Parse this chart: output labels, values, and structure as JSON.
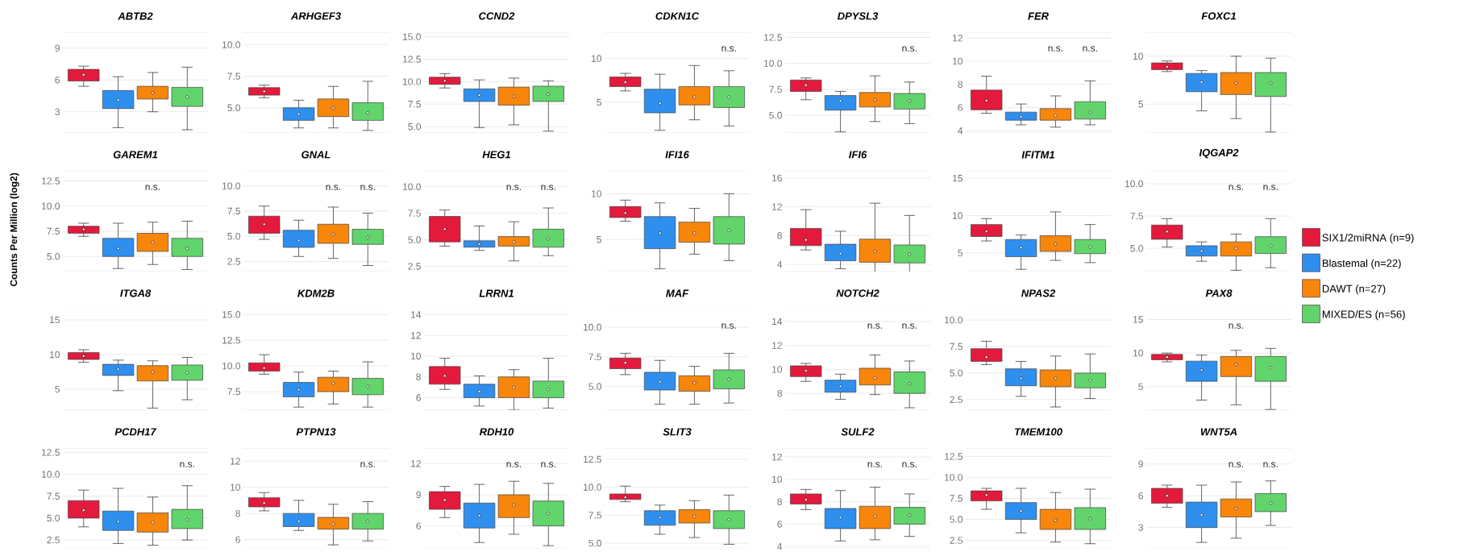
{
  "chart_data": [
    {
      "type": "box",
      "title": "ABTB2",
      "legend": "right",
      "categories": [
        null
      ],
      "ylim": [
        1,
        10.5
      ],
      "yticks": [
        3,
        6,
        9
      ],
      "grid": "y",
      "series": [
        {
          "name": "SIX1/2miRNA (n=9)",
          "color": "#e31a3c",
          "boxes": [
            {
              "low": 5.4,
              "q1": 5.9,
              "median": 6.5,
              "q3": 7.0,
              "high": 7.3
            }
          ]
        },
        {
          "name": "Blastemal (n=22)",
          "color": "#2f8fef",
          "boxes": [
            {
              "low": 1.5,
              "q1": 3.3,
              "median": 4.1,
              "q3": 5.0,
              "high": 6.3
            }
          ]
        },
        {
          "name": "DAWT (n=27)",
          "color": "#f7860b",
          "boxes": [
            {
              "low": 3.0,
              "q1": 4.2,
              "median": 4.8,
              "q3": 5.4,
              "high": 6.7
            }
          ]
        },
        {
          "name": "MIXED/ES (n=56)",
          "color": "#61d46b",
          "boxes": [
            {
              "low": 1.3,
              "q1": 3.5,
              "median": 4.4,
              "q3": 5.3,
              "high": 7.2
            }
          ]
        }
      ]
    },
    {
      "type": "box",
      "title": "ARHGEF3",
      "categories": [
        null
      ],
      "ylim": [
        3,
        11
      ],
      "yticks": [
        {
          "value": 5,
          "label": "5.0"
        },
        7.5,
        {
          "value": 10,
          "label": "10.0"
        }
      ],
      "grid": "y",
      "series": [
        {
          "color": "#e31a3c",
          "boxes": [
            {
              "low": 5.8,
              "q1": 6.0,
              "median": 6.3,
              "q3": 6.6,
              "high": 6.8
            }
          ]
        },
        {
          "color": "#2f8fef",
          "boxes": [
            {
              "low": 3.4,
              "q1": 4.0,
              "median": 4.5,
              "q3": 5.0,
              "high": 5.6
            }
          ]
        },
        {
          "color": "#f7860b",
          "boxes": [
            {
              "low": 3.4,
              "q1": 4.3,
              "median": 5.0,
              "q3": 5.7,
              "high": 6.7
            }
          ]
        },
        {
          "color": "#61d46b",
          "boxes": [
            {
              "low": 3.2,
              "q1": 4.0,
              "median": 4.6,
              "q3": 5.4,
              "high": 7.1
            }
          ]
        }
      ]
    },
    {
      "type": "box",
      "title": "CCND2",
      "categories": [
        null
      ],
      "ylim": [
        4.3,
        15.5
      ],
      "yticks": [
        {
          "value": 5,
          "label": "5.0"
        },
        7.5,
        {
          "value": 10,
          "label": "10.0"
        },
        12.5,
        {
          "value": 15,
          "label": "15.0"
        }
      ],
      "grid": "y",
      "series": [
        {
          "color": "#e31a3c",
          "boxes": [
            {
              "low": 9.3,
              "q1": 9.7,
              "median": 10.1,
              "q3": 10.5,
              "high": 10.9
            }
          ]
        },
        {
          "color": "#2f8fef",
          "boxes": [
            {
              "low": 4.9,
              "q1": 7.8,
              "median": 8.5,
              "q3": 9.2,
              "high": 10.2
            }
          ]
        },
        {
          "color": "#f7860b",
          "boxes": [
            {
              "low": 5.2,
              "q1": 7.4,
              "median": 8.4,
              "q3": 9.4,
              "high": 10.4
            }
          ]
        },
        {
          "color": "#61d46b",
          "boxes": [
            {
              "low": 4.5,
              "q1": 7.8,
              "median": 8.6,
              "q3": 9.5,
              "high": 10.1
            }
          ]
        }
      ]
    },
    {
      "type": "box",
      "title": "CDKN1C",
      "categories": [
        null
      ],
      "ylim": [
        1.5,
        13
      ],
      "yticks": [
        5,
        10
      ],
      "grid": "y",
      "series": [
        {
          "color": "#e31a3c",
          "boxes": [
            {
              "low": 6.3,
              "q1": 6.8,
              "median": 7.3,
              "q3": 7.9,
              "high": 8.3
            }
          ]
        },
        {
          "color": "#2f8fef",
          "boxes": [
            {
              "low": 1.8,
              "q1": 3.8,
              "median": 4.9,
              "q3": 6.5,
              "high": 8.2
            }
          ]
        },
        {
          "color": "#f7860b",
          "boxes": [
            {
              "low": 3.0,
              "q1": 4.7,
              "median": 5.6,
              "q3": 6.8,
              "high": 9.2
            }
          ]
        },
        {
          "color": "#61d46b",
          "value_labels": [
            "n.s."
          ],
          "boxes": [
            {
              "low": 2.3,
              "q1": 4.4,
              "median": 5.6,
              "q3": 6.8,
              "high": 8.6
            }
          ]
        }
      ]
    },
    {
      "type": "box",
      "title": "DPYSL3",
      "categories": [
        null
      ],
      "ylim": [
        3.3,
        13
      ],
      "yticks": [
        {
          "value": 5,
          "label": "5.0"
        },
        7.5,
        {
          "value": 10,
          "label": "10.0"
        },
        12.5
      ],
      "grid": "y",
      "series": [
        {
          "color": "#e31a3c",
          "boxes": [
            {
              "low": 6.5,
              "q1": 7.3,
              "median": 7.9,
              "q3": 8.4,
              "high": 8.6
            }
          ]
        },
        {
          "color": "#2f8fef",
          "boxes": [
            {
              "low": 3.4,
              "q1": 5.5,
              "median": 6.4,
              "q3": 6.9,
              "high": 7.3
            }
          ]
        },
        {
          "color": "#f7860b",
          "boxes": [
            {
              "low": 4.4,
              "q1": 5.8,
              "median": 6.5,
              "q3": 7.2,
              "high": 8.8
            }
          ]
        },
        {
          "color": "#61d46b",
          "value_labels": [
            "n.s."
          ],
          "boxes": [
            {
              "low": 4.2,
              "q1": 5.6,
              "median": 6.4,
              "q3": 7.1,
              "high": 8.2
            }
          ]
        }
      ]
    },
    {
      "type": "box",
      "title": "FER",
      "categories": [
        null
      ],
      "ylim": [
        3.8,
        12.5
      ],
      "yticks": [
        4,
        6,
        8,
        10,
        12
      ],
      "grid": "y",
      "series": [
        {
          "color": "#e31a3c",
          "boxes": [
            {
              "low": 5.5,
              "q1": 5.8,
              "median": 6.6,
              "q3": 7.5,
              "high": 8.7
            }
          ]
        },
        {
          "color": "#2f8fef",
          "boxes": [
            {
              "low": 4.5,
              "q1": 4.9,
              "median": 5.2,
              "q3": 5.6,
              "high": 6.3
            }
          ]
        },
        {
          "color": "#f7860b",
          "value_labels": [
            "n.s."
          ],
          "boxes": [
            {
              "low": 4.3,
              "q1": 4.9,
              "median": 5.3,
              "q3": 5.9,
              "high": 7.0
            }
          ]
        },
        {
          "color": "#61d46b",
          "value_labels": [
            "n.s."
          ],
          "boxes": [
            {
              "low": 4.5,
              "q1": 5.0,
              "median": 5.6,
              "q3": 6.5,
              "high": 8.3
            }
          ]
        }
      ]
    },
    {
      "type": "box",
      "title": "FOXC1",
      "categories": [
        null
      ],
      "ylim": [
        2,
        12.5
      ],
      "yticks": [
        5,
        10
      ],
      "grid": "y",
      "series": [
        {
          "color": "#e31a3c",
          "boxes": [
            {
              "low": 8.4,
              "q1": 8.6,
              "median": 8.9,
              "q3": 9.3,
              "high": 9.5
            }
          ]
        },
        {
          "color": "#2f8fef",
          "boxes": [
            {
              "low": 4.3,
              "q1": 6.3,
              "median": 7.3,
              "q3": 8.2,
              "high": 8.5
            }
          ]
        },
        {
          "color": "#f7860b",
          "boxes": [
            {
              "low": 3.5,
              "q1": 6.0,
              "median": 7.2,
              "q3": 8.3,
              "high": 10.0
            }
          ]
        },
        {
          "color": "#61d46b",
          "boxes": [
            {
              "low": 2.1,
              "q1": 5.8,
              "median": 7.2,
              "q3": 8.3,
              "high": 9.8
            }
          ]
        }
      ]
    },
    {
      "type": "box",
      "title": "GAREM1",
      "ylabel": "Counts Per Million (log2)",
      "categories": [
        null
      ],
      "ylim": [
        3.5,
        13.5
      ],
      "yticks": [
        {
          "value": 5,
          "label": "5.0"
        },
        7.5,
        {
          "value": 10,
          "label": "10.0"
        },
        12.5
      ],
      "grid": "y",
      "series": [
        {
          "color": "#e31a3c",
          "boxes": [
            {
              "low": 7.0,
              "q1": 7.3,
              "median": 7.7,
              "q3": 8.0,
              "high": 8.3
            }
          ]
        },
        {
          "color": "#2f8fef",
          "boxes": [
            {
              "low": 3.8,
              "q1": 5.0,
              "median": 5.8,
              "q3": 6.8,
              "high": 8.3
            }
          ]
        },
        {
          "color": "#f7860b",
          "value_labels": [
            "n.s."
          ],
          "boxes": [
            {
              "low": 4.2,
              "q1": 5.5,
              "median": 6.4,
              "q3": 7.3,
              "high": 8.4
            }
          ]
        },
        {
          "color": "#61d46b",
          "boxes": [
            {
              "low": 3.7,
              "q1": 5.0,
              "median": 5.8,
              "q3": 6.8,
              "high": 8.5
            }
          ]
        }
      ]
    },
    {
      "type": "box",
      "title": "GNAL",
      "categories": [
        null
      ],
      "ylim": [
        1.5,
        11.5
      ],
      "yticks": [
        2.5,
        {
          "value": 5,
          "label": "5.0"
        },
        7.5,
        {
          "value": 10,
          "label": "10.0"
        }
      ],
      "grid": "y",
      "series": [
        {
          "color": "#e31a3c",
          "boxes": [
            {
              "low": 4.7,
              "q1": 5.3,
              "median": 6.2,
              "q3": 7.0,
              "high": 8.0
            }
          ]
        },
        {
          "color": "#2f8fef",
          "boxes": [
            {
              "low": 3.0,
              "q1": 3.9,
              "median": 4.6,
              "q3": 5.6,
              "high": 6.6
            }
          ]
        },
        {
          "color": "#f7860b",
          "value_labels": [
            "n.s."
          ],
          "boxes": [
            {
              "low": 2.8,
              "q1": 4.3,
              "median": 5.2,
              "q3": 6.2,
              "high": 7.9
            }
          ]
        },
        {
          "color": "#61d46b",
          "value_labels": [
            "n.s."
          ],
          "boxes": [
            {
              "low": 2.1,
              "q1": 4.2,
              "median": 4.9,
              "q3": 5.7,
              "high": 7.3
            }
          ]
        }
      ]
    },
    {
      "type": "box",
      "title": "HEG1",
      "categories": [
        null
      ],
      "ylim": [
        2,
        11.5
      ],
      "yticks": [
        2.5,
        {
          "value": 5,
          "label": "5.0"
        },
        7.5,
        {
          "value": 10,
          "label": "10.0"
        }
      ],
      "grid": "y",
      "series": [
        {
          "color": "#e31a3c",
          "boxes": [
            {
              "low": 4.4,
              "q1": 4.8,
              "median": 6.0,
              "q3": 7.2,
              "high": 7.8
            }
          ]
        },
        {
          "color": "#2f8fef",
          "boxes": [
            {
              "low": 4.0,
              "q1": 4.3,
              "median": 4.6,
              "q3": 4.9,
              "high": 6.3
            }
          ]
        },
        {
          "color": "#f7860b",
          "value_labels": [
            "n.s."
          ],
          "boxes": [
            {
              "low": 3.0,
              "q1": 4.4,
              "median": 4.8,
              "q3": 5.3,
              "high": 6.7
            }
          ]
        },
        {
          "color": "#61d46b",
          "value_labels": [
            "n.s."
          ],
          "boxes": [
            {
              "low": 3.5,
              "q1": 4.3,
              "median": 5.1,
              "q3": 6.0,
              "high": 8.0
            }
          ]
        }
      ]
    },
    {
      "type": "box",
      "title": "IFI16",
      "categories": [
        null
      ],
      "ylim": [
        1.5,
        12.5
      ],
      "yticks": [
        5,
        10
      ],
      "grid": "y",
      "series": [
        {
          "color": "#e31a3c",
          "boxes": [
            {
              "low": 7.0,
              "q1": 7.4,
              "median": 7.9,
              "q3": 8.6,
              "high": 9.3
            }
          ]
        },
        {
          "color": "#2f8fef",
          "boxes": [
            {
              "low": 1.8,
              "q1": 4.0,
              "median": 5.7,
              "q3": 7.5,
              "high": 9.0
            }
          ]
        },
        {
          "color": "#f7860b",
          "boxes": [
            {
              "low": 3.4,
              "q1": 4.7,
              "median": 5.7,
              "q3": 6.9,
              "high": 8.4
            }
          ]
        },
        {
          "color": "#61d46b",
          "boxes": [
            {
              "low": 2.7,
              "q1": 4.5,
              "median": 6.0,
              "q3": 7.5,
              "high": 10.0
            }
          ]
        }
      ]
    },
    {
      "type": "box",
      "title": "IFI6",
      "categories": [
        null
      ],
      "ylim": [
        3,
        17
      ],
      "yticks": [
        4,
        8,
        12,
        16
      ],
      "grid": "y",
      "series": [
        {
          "color": "#e31a3c",
          "boxes": [
            {
              "low": 6.0,
              "q1": 6.6,
              "median": 7.4,
              "q3": 9.0,
              "high": 11.6
            }
          ]
        },
        {
          "color": "#2f8fef",
          "boxes": [
            {
              "low": 3.4,
              "q1": 4.5,
              "median": 5.5,
              "q3": 6.8,
              "high": 8.6
            }
          ]
        },
        {
          "color": "#f7860b",
          "boxes": [
            {
              "low": 2.9,
              "q1": 4.3,
              "median": 5.8,
              "q3": 7.5,
              "high": 12.5
            }
          ]
        },
        {
          "color": "#61d46b",
          "boxes": [
            {
              "low": 2.8,
              "q1": 4.2,
              "median": 5.4,
              "q3": 6.7,
              "high": 10.8
            }
          ]
        }
      ]
    },
    {
      "type": "box",
      "title": "IFITM1",
      "categories": [
        null
      ],
      "ylim": [
        2.5,
        16
      ],
      "yticks": [
        5,
        10,
        15
      ],
      "grid": "y",
      "series": [
        {
          "color": "#e31a3c",
          "boxes": [
            {
              "low": 6.6,
              "q1": 7.2,
              "median": 7.9,
              "q3": 8.8,
              "high": 9.6
            }
          ]
        },
        {
          "color": "#2f8fef",
          "boxes": [
            {
              "low": 2.8,
              "q1": 4.5,
              "median": 5.7,
              "q3": 6.8,
              "high": 7.4
            }
          ]
        },
        {
          "color": "#f7860b",
          "boxes": [
            {
              "low": 4.0,
              "q1": 5.2,
              "median": 6.2,
              "q3": 7.3,
              "high": 10.5
            }
          ]
        },
        {
          "color": "#61d46b",
          "boxes": [
            {
              "low": 3.7,
              "q1": 4.9,
              "median": 5.8,
              "q3": 6.8,
              "high": 8.8
            }
          ]
        }
      ]
    },
    {
      "type": "box",
      "title": "IQGAP2",
      "categories": [
        null
      ],
      "ylim": [
        3.2,
        11
      ],
      "yticks": [
        {
          "value": 5,
          "label": "5.0"
        },
        7.5,
        {
          "value": 10,
          "label": "10.0"
        }
      ],
      "grid": "y",
      "series": [
        {
          "color": "#e31a3c",
          "boxes": [
            {
              "low": 5.1,
              "q1": 5.7,
              "median": 6.3,
              "q3": 6.8,
              "high": 7.3
            }
          ]
        },
        {
          "color": "#2f8fef",
          "boxes": [
            {
              "low": 4.0,
              "q1": 4.4,
              "median": 4.8,
              "q3": 5.2,
              "high": 5.5
            }
          ]
        },
        {
          "color": "#f7860b",
          "value_labels": [
            "n.s."
          ],
          "boxes": [
            {
              "low": 3.3,
              "q1": 4.4,
              "median": 5.0,
              "q3": 5.5,
              "high": 6.1
            }
          ]
        },
        {
          "color": "#61d46b",
          "value_labels": [
            "n.s."
          ],
          "boxes": [
            {
              "low": 3.5,
              "q1": 4.6,
              "median": 5.2,
              "q3": 5.9,
              "high": 7.3
            }
          ]
        }
      ]
    },
    {
      "type": "box",
      "title": "ITGA8",
      "categories": [
        null
      ],
      "ylim": [
        2,
        16.5
      ],
      "yticks": [
        5,
        10,
        15
      ],
      "grid": "y",
      "series": [
        {
          "color": "#e31a3c",
          "boxes": [
            {
              "low": 8.9,
              "q1": 9.3,
              "median": 9.8,
              "q3": 10.3,
              "high": 10.7
            }
          ]
        },
        {
          "color": "#2f8fef",
          "boxes": [
            {
              "low": 4.8,
              "q1": 7.0,
              "median": 7.9,
              "q3": 8.6,
              "high": 9.2
            }
          ]
        },
        {
          "color": "#f7860b",
          "boxes": [
            {
              "low": 2.3,
              "q1": 6.2,
              "median": 7.5,
              "q3": 8.4,
              "high": 9.1
            }
          ]
        },
        {
          "color": "#61d46b",
          "boxes": [
            {
              "low": 3.5,
              "q1": 6.3,
              "median": 7.4,
              "q3": 8.5,
              "high": 9.6
            }
          ]
        }
      ]
    },
    {
      "type": "box",
      "title": "KDM2B",
      "categories": [
        null
      ],
      "ylim": [
        5.7,
        15.5
      ],
      "yticks": [
        7.5,
        {
          "value": 10,
          "label": "10.0"
        },
        12.5,
        {
          "value": 15,
          "label": "15.0"
        }
      ],
      "grid": "y",
      "series": [
        {
          "color": "#e31a3c",
          "boxes": [
            {
              "low": 9.2,
              "q1": 9.5,
              "median": 9.8,
              "q3": 10.3,
              "high": 11.1
            }
          ]
        },
        {
          "color": "#2f8fef",
          "boxes": [
            {
              "low": 6.0,
              "q1": 7.0,
              "median": 7.7,
              "q3": 8.4,
              "high": 9.4
            }
          ]
        },
        {
          "color": "#f7860b",
          "boxes": [
            {
              "low": 6.3,
              "q1": 7.5,
              "median": 8.3,
              "q3": 8.9,
              "high": 9.5
            }
          ]
        },
        {
          "color": "#61d46b",
          "boxes": [
            {
              "low": 6.0,
              "q1": 7.2,
              "median": 8.0,
              "q3": 8.8,
              "high": 10.4
            }
          ]
        }
      ]
    },
    {
      "type": "box",
      "title": "LRRN1",
      "categories": [
        null
      ],
      "ylim": [
        4.8,
        14.5
      ],
      "yticks": [
        6,
        8,
        10,
        12,
        14
      ],
      "grid": "y",
      "series": [
        {
          "color": "#e31a3c",
          "boxes": [
            {
              "low": 6.8,
              "q1": 7.3,
              "median": 8.1,
              "q3": 9.0,
              "high": 9.8
            }
          ]
        },
        {
          "color": "#2f8fef",
          "boxes": [
            {
              "low": 5.2,
              "q1": 6.0,
              "median": 6.6,
              "q3": 7.3,
              "high": 8.1
            }
          ]
        },
        {
          "color": "#f7860b",
          "boxes": [
            {
              "low": 4.8,
              "q1": 6.0,
              "median": 7.0,
              "q3": 8.0,
              "high": 8.7
            }
          ]
        },
        {
          "color": "#61d46b",
          "boxes": [
            {
              "low": 5.0,
              "q1": 6.0,
              "median": 6.8,
              "q3": 7.6,
              "high": 9.8
            }
          ]
        }
      ]
    },
    {
      "type": "box",
      "title": "MAF",
      "categories": [
        null
      ],
      "ylim": [
        3,
        11.5
      ],
      "yticks": [
        {
          "value": 5,
          "label": "5.0"
        },
        7.5,
        {
          "value": 10,
          "label": "10.0"
        }
      ],
      "grid": "y",
      "series": [
        {
          "color": "#e31a3c",
          "boxes": [
            {
              "low": 6.0,
              "q1": 6.5,
              "median": 7.0,
              "q3": 7.4,
              "high": 7.8
            }
          ]
        },
        {
          "color": "#2f8fef",
          "boxes": [
            {
              "low": 3.5,
              "q1": 4.7,
              "median": 5.4,
              "q3": 6.2,
              "high": 7.2
            }
          ]
        },
        {
          "color": "#f7860b",
          "boxes": [
            {
              "low": 3.5,
              "q1": 4.6,
              "median": 5.3,
              "q3": 5.9,
              "high": 6.7
            }
          ]
        },
        {
          "color": "#61d46b",
          "value_labels": [
            "n.s."
          ],
          "boxes": [
            {
              "low": 3.6,
              "q1": 4.8,
              "median": 5.6,
              "q3": 6.4,
              "high": 7.8
            }
          ]
        }
      ]
    },
    {
      "type": "box",
      "title": "NOTCH2",
      "categories": [
        null
      ],
      "ylim": [
        6.6,
        15
      ],
      "yticks": [
        8,
        10,
        12,
        14
      ],
      "grid": "y",
      "series": [
        {
          "color": "#e31a3c",
          "boxes": [
            {
              "low": 9.0,
              "q1": 9.4,
              "median": 9.9,
              "q3": 10.3,
              "high": 10.5
            }
          ]
        },
        {
          "color": "#2f8fef",
          "boxes": [
            {
              "low": 7.5,
              "q1": 8.1,
              "median": 8.6,
              "q3": 9.1,
              "high": 9.6
            }
          ]
        },
        {
          "color": "#f7860b",
          "value_labels": [
            "n.s."
          ],
          "boxes": [
            {
              "low": 7.9,
              "q1": 8.7,
              "median": 9.3,
              "q3": 10.1,
              "high": 11.2
            }
          ]
        },
        {
          "color": "#61d46b",
          "value_labels": [
            "n.s."
          ],
          "boxes": [
            {
              "low": 6.8,
              "q1": 8.0,
              "median": 8.8,
              "q3": 9.8,
              "high": 10.7
            }
          ]
        }
      ]
    },
    {
      "type": "box",
      "title": "NPAS2",
      "categories": [
        null
      ],
      "ylim": [
        1.5,
        11
      ],
      "yticks": [
        2.5,
        {
          "value": 5,
          "label": "5.0"
        },
        7.5,
        {
          "value": 10,
          "label": "10.0"
        }
      ],
      "grid": "y",
      "series": [
        {
          "color": "#e31a3c",
          "boxes": [
            {
              "low": 5.8,
              "q1": 6.1,
              "median": 6.5,
              "q3": 7.3,
              "high": 8.0
            }
          ]
        },
        {
          "color": "#2f8fef",
          "boxes": [
            {
              "low": 2.8,
              "q1": 3.8,
              "median": 4.5,
              "q3": 5.4,
              "high": 6.1
            }
          ]
        },
        {
          "color": "#f7860b",
          "boxes": [
            {
              "low": 1.8,
              "q1": 3.7,
              "median": 4.5,
              "q3": 5.3,
              "high": 6.6
            }
          ]
        },
        {
          "color": "#61d46b",
          "boxes": [
            {
              "low": 2.6,
              "q1": 3.6,
              "median": 4.3,
              "q3": 5.0,
              "high": 6.8
            }
          ]
        }
      ]
    },
    {
      "type": "box",
      "title": "PAX8",
      "categories": [
        null
      ],
      "ylim": [
        1.5,
        16.5
      ],
      "yticks": [
        5,
        10,
        15
      ],
      "grid": "y",
      "series": [
        {
          "color": "#e31a3c",
          "boxes": [
            {
              "low": 8.7,
              "q1": 9.0,
              "median": 9.4,
              "q3": 9.8,
              "high": 10.0
            }
          ]
        },
        {
          "color": "#2f8fef",
          "boxes": [
            {
              "low": 3.0,
              "q1": 5.8,
              "median": 7.5,
              "q3": 8.8,
              "high": 9.7
            }
          ]
        },
        {
          "color": "#f7860b",
          "value_labels": [
            "n.s."
          ],
          "boxes": [
            {
              "low": 2.3,
              "q1": 6.5,
              "median": 8.3,
              "q3": 9.5,
              "high": 10.4
            }
          ]
        },
        {
          "color": "#61d46b",
          "boxes": [
            {
              "low": 1.6,
              "q1": 5.8,
              "median": 7.8,
              "q3": 9.5,
              "high": 10.7
            }
          ]
        }
      ]
    },
    {
      "type": "box",
      "title": "PCDH17",
      "categories": [
        null
      ],
      "ylim": [
        1.5,
        13
      ],
      "yticks": [
        2.5,
        {
          "value": 5,
          "label": "5.0"
        },
        7.5,
        {
          "value": 10,
          "label": "10.0"
        },
        12.5
      ],
      "grid": "y",
      "series": [
        {
          "color": "#e31a3c",
          "boxes": [
            {
              "low": 4.0,
              "q1": 5.0,
              "median": 5.9,
              "q3": 7.0,
              "high": 8.2
            }
          ]
        },
        {
          "color": "#2f8fef",
          "boxes": [
            {
              "low": 2.1,
              "q1": 3.6,
              "median": 4.6,
              "q3": 5.8,
              "high": 8.4
            }
          ]
        },
        {
          "color": "#f7860b",
          "boxes": [
            {
              "low": 1.9,
              "q1": 3.4,
              "median": 4.5,
              "q3": 5.6,
              "high": 7.4
            }
          ]
        },
        {
          "color": "#61d46b",
          "value_labels": [
            "n.s."
          ],
          "boxes": [
            {
              "low": 2.5,
              "q1": 3.8,
              "median": 4.8,
              "q3": 6.0,
              "high": 8.7
            }
          ]
        }
      ]
    },
    {
      "type": "box",
      "title": "PTPN13",
      "categories": [
        null
      ],
      "ylim": [
        5.3,
        13
      ],
      "yticks": [
        6,
        8,
        10,
        12
      ],
      "grid": "y",
      "series": [
        {
          "color": "#e31a3c",
          "boxes": [
            {
              "low": 8.2,
              "q1": 8.5,
              "median": 8.8,
              "q3": 9.2,
              "high": 9.6
            }
          ]
        },
        {
          "color": "#2f8fef",
          "boxes": [
            {
              "low": 6.7,
              "q1": 7.0,
              "median": 7.4,
              "q3": 8.0,
              "high": 9.0
            }
          ]
        },
        {
          "color": "#f7860b",
          "boxes": [
            {
              "low": 5.6,
              "q1": 6.8,
              "median": 7.2,
              "q3": 7.7,
              "high": 8.7
            }
          ]
        },
        {
          "color": "#61d46b",
          "value_labels": [
            "n.s."
          ],
          "boxes": [
            {
              "low": 5.9,
              "q1": 6.8,
              "median": 7.4,
              "q3": 8.0,
              "high": 8.9
            }
          ]
        }
      ]
    },
    {
      "type": "box",
      "title": "RDH10",
      "categories": [
        null
      ],
      "ylim": [
        3.8,
        13.5
      ],
      "yticks": [
        6,
        9,
        12
      ],
      "grid": "y",
      "series": [
        {
          "color": "#e31a3c",
          "boxes": [
            {
              "low": 6.8,
              "q1": 7.6,
              "median": 8.5,
              "q3": 9.3,
              "high": 9.8
            }
          ]
        },
        {
          "color": "#2f8fef",
          "boxes": [
            {
              "low": 4.4,
              "q1": 5.8,
              "median": 7.0,
              "q3": 8.2,
              "high": 10.0
            }
          ]
        },
        {
          "color": "#f7860b",
          "value_labels": [
            "n.s."
          ],
          "boxes": [
            {
              "low": 5.2,
              "q1": 6.8,
              "median": 8.0,
              "q3": 9.0,
              "high": 10.3
            }
          ]
        },
        {
          "color": "#61d46b",
          "value_labels": [
            "n.s."
          ],
          "boxes": [
            {
              "low": 4.1,
              "q1": 6.0,
              "median": 7.2,
              "q3": 8.4,
              "high": 10.1
            }
          ]
        }
      ]
    },
    {
      "type": "box",
      "title": "SLIT3",
      "categories": [
        null
      ],
      "ylim": [
        4.5,
        13.5
      ],
      "yticks": [
        {
          "value": 5,
          "label": "5.0"
        },
        7.5,
        {
          "value": 10,
          "label": "10.0"
        },
        12.5
      ],
      "grid": "y",
      "series": [
        {
          "color": "#e31a3c",
          "boxes": [
            {
              "low": 8.7,
              "q1": 8.9,
              "median": 9.1,
              "q3": 9.4,
              "high": 10.1
            }
          ]
        },
        {
          "color": "#2f8fef",
          "boxes": [
            {
              "low": 5.8,
              "q1": 6.6,
              "median": 7.3,
              "q3": 7.9,
              "high": 8.4
            }
          ]
        },
        {
          "color": "#f7860b",
          "boxes": [
            {
              "low": 5.5,
              "q1": 6.8,
              "median": 7.4,
              "q3": 8.0,
              "high": 8.8
            }
          ]
        },
        {
          "color": "#61d46b",
          "boxes": [
            {
              "low": 4.9,
              "q1": 6.3,
              "median": 7.1,
              "q3": 7.9,
              "high": 9.3
            }
          ]
        }
      ]
    },
    {
      "type": "box",
      "title": "SULF2",
      "categories": [
        null
      ],
      "ylim": [
        3.8,
        12.8
      ],
      "yticks": [
        4,
        6,
        8,
        10,
        12
      ],
      "grid": "y",
      "series": [
        {
          "color": "#e31a3c",
          "boxes": [
            {
              "low": 7.3,
              "q1": 7.8,
              "median": 8.2,
              "q3": 8.7,
              "high": 9.1
            }
          ]
        },
        {
          "color": "#2f8fef",
          "boxes": [
            {
              "low": 4.5,
              "q1": 5.6,
              "median": 6.6,
              "q3": 7.4,
              "high": 9.0
            }
          ]
        },
        {
          "color": "#f7860b",
          "value_labels": [
            "n.s."
          ],
          "boxes": [
            {
              "low": 4.6,
              "q1": 5.6,
              "median": 6.7,
              "q3": 7.6,
              "high": 9.3
            }
          ]
        },
        {
          "color": "#61d46b",
          "value_labels": [
            "n.s."
          ],
          "boxes": [
            {
              "low": 4.9,
              "q1": 6.0,
              "median": 6.8,
              "q3": 7.5,
              "high": 8.7
            }
          ]
        }
      ]
    },
    {
      "type": "box",
      "title": "TMEM100",
      "categories": [
        null
      ],
      "ylim": [
        1.5,
        13.5
      ],
      "yticks": [
        2.5,
        {
          "value": 5,
          "label": "5.0"
        },
        7.5,
        {
          "value": 10,
          "label": "10.0"
        },
        12.5
      ],
      "grid": "y",
      "series": [
        {
          "color": "#e31a3c",
          "boxes": [
            {
              "low": 6.2,
              "q1": 7.2,
              "median": 7.9,
              "q3": 8.4,
              "high": 8.7
            }
          ]
        },
        {
          "color": "#2f8fef",
          "boxes": [
            {
              "low": 3.4,
              "q1": 5.0,
              "median": 6.0,
              "q3": 7.0,
              "high": 8.7
            }
          ]
        },
        {
          "color": "#f7860b",
          "boxes": [
            {
              "low": 2.3,
              "q1": 3.8,
              "median": 4.9,
              "q3": 6.2,
              "high": 8.2
            }
          ]
        },
        {
          "color": "#61d46b",
          "boxes": [
            {
              "low": 2.1,
              "q1": 3.8,
              "median": 5.1,
              "q3": 6.4,
              "high": 8.6
            }
          ]
        }
      ]
    },
    {
      "type": "box",
      "title": "WNT5A",
      "categories": [
        null
      ],
      "ylim": [
        1,
        10.5
      ],
      "yticks": [
        3,
        6,
        9
      ],
      "grid": "y",
      "series": [
        {
          "color": "#e31a3c",
          "boxes": [
            {
              "low": 4.9,
              "q1": 5.3,
              "median": 6.0,
              "q3": 6.7,
              "high": 7.0
            }
          ]
        },
        {
          "color": "#2f8fef",
          "boxes": [
            {
              "low": 1.6,
              "q1": 3.0,
              "median": 4.2,
              "q3": 5.4,
              "high": 7.0
            }
          ]
        },
        {
          "color": "#f7860b",
          "value_labels": [
            "n.s."
          ],
          "boxes": [
            {
              "low": 2.0,
              "q1": 4.0,
              "median": 4.8,
              "q3": 5.7,
              "high": 7.3
            }
          ]
        },
        {
          "color": "#61d46b",
          "value_labels": [
            "n.s."
          ],
          "boxes": [
            {
              "low": 3.2,
              "q1": 4.5,
              "median": 5.3,
              "q3": 6.2,
              "high": 7.4
            }
          ]
        }
      ]
    }
  ]
}
